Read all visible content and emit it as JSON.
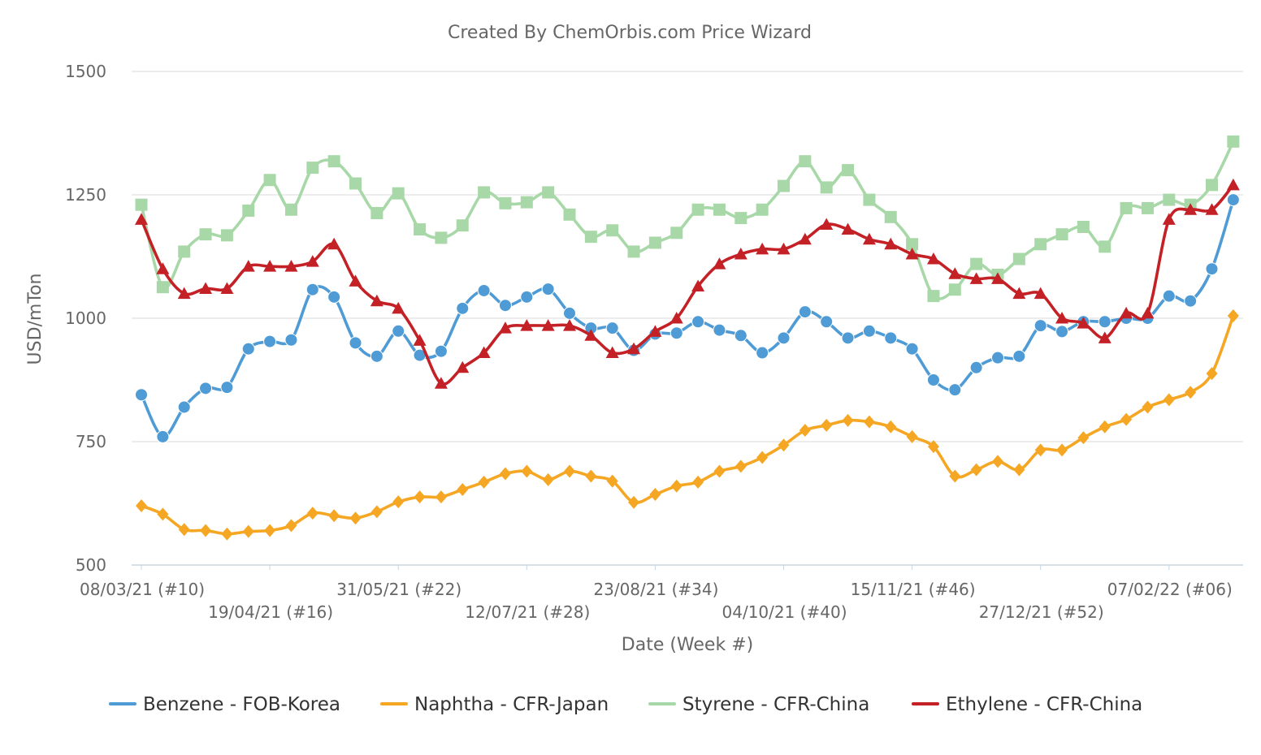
{
  "chart_data": {
    "type": "line",
    "title": "Created By ChemOrbis.com Price Wizard",
    "xlabel": "Date (Week #)",
    "ylabel": "USD/mTon",
    "ylim": [
      500,
      1500
    ],
    "yticks": [
      500,
      750,
      1000,
      1250,
      1500
    ],
    "grid": true,
    "legend_position": "bottom",
    "x_tick_labels": [
      {
        "index": 0,
        "label": "08/03/21 (#10)"
      },
      {
        "index": 6,
        "label": "19/04/21 (#16)"
      },
      {
        "index": 12,
        "label": "31/05/21 (#22)"
      },
      {
        "index": 18,
        "label": "12/07/21 (#28)"
      },
      {
        "index": 24,
        "label": "23/08/21 (#34)"
      },
      {
        "index": 30,
        "label": "04/10/21 (#40)"
      },
      {
        "index": 36,
        "label": "15/11/21 (#46)"
      },
      {
        "index": 42,
        "label": "27/12/21 (#52)"
      },
      {
        "index": 48,
        "label": "07/02/22 (#06)"
      }
    ],
    "series": [
      {
        "name": "Benzene - FOB-Korea",
        "color": "#4e9bd5",
        "marker": "circle",
        "values": [
          845,
          760,
          820,
          858,
          860,
          938,
          953,
          956,
          1058,
          1043,
          950,
          923,
          974,
          925,
          933,
          1020,
          1056,
          1026,
          1043,
          1059,
          1010,
          980,
          980,
          935,
          968,
          970,
          993,
          976,
          965,
          930,
          960,
          1013,
          993,
          960,
          974,
          960,
          938,
          875,
          855,
          900,
          920,
          923,
          985,
          973,
          993,
          993,
          1000,
          1000,
          1045,
          1035,
          1100,
          1240
        ]
      },
      {
        "name": "Naphtha - CFR-Japan",
        "color": "#f5a623",
        "marker": "diamond",
        "values": [
          620,
          603,
          572,
          570,
          563,
          568,
          570,
          580,
          605,
          600,
          595,
          608,
          628,
          638,
          638,
          653,
          668,
          685,
          690,
          673,
          690,
          680,
          670,
          627,
          643,
          660,
          668,
          690,
          700,
          718,
          743,
          773,
          783,
          793,
          790,
          780,
          760,
          740,
          680,
          693,
          710,
          693,
          733,
          733,
          758,
          780,
          795,
          820,
          835,
          850,
          888,
          1005
        ]
      },
      {
        "name": "Styrene - CFR-China",
        "color": "#a8d8a8",
        "marker": "square",
        "values": [
          1230,
          1063,
          1135,
          1170,
          1168,
          1218,
          1280,
          1220,
          1305,
          1318,
          1273,
          1213,
          1253,
          1180,
          1163,
          1188,
          1255,
          1233,
          1235,
          1255,
          1210,
          1165,
          1178,
          1135,
          1153,
          1173,
          1220,
          1220,
          1203,
          1220,
          1268,
          1318,
          1265,
          1300,
          1240,
          1205,
          1150,
          1045,
          1058,
          1110,
          1088,
          1120,
          1150,
          1170,
          1185,
          1145,
          1223,
          1223,
          1240,
          1230,
          1270,
          1358
        ]
      },
      {
        "name": "Ethylene - CFR-China",
        "color": "#c42127",
        "marker": "triangle",
        "values": [
          1200,
          1100,
          1050,
          1060,
          1060,
          1105,
          1105,
          1105,
          1115,
          1150,
          1075,
          1035,
          1020,
          955,
          868,
          900,
          930,
          980,
          985,
          985,
          985,
          965,
          930,
          938,
          973,
          1000,
          1065,
          1110,
          1130,
          1140,
          1140,
          1160,
          1190,
          1180,
          1160,
          1150,
          1130,
          1120,
          1090,
          1080,
          1080,
          1050,
          1050,
          1000,
          990,
          960,
          1010,
          1010,
          1200,
          1220,
          1220,
          1270
        ]
      }
    ]
  }
}
